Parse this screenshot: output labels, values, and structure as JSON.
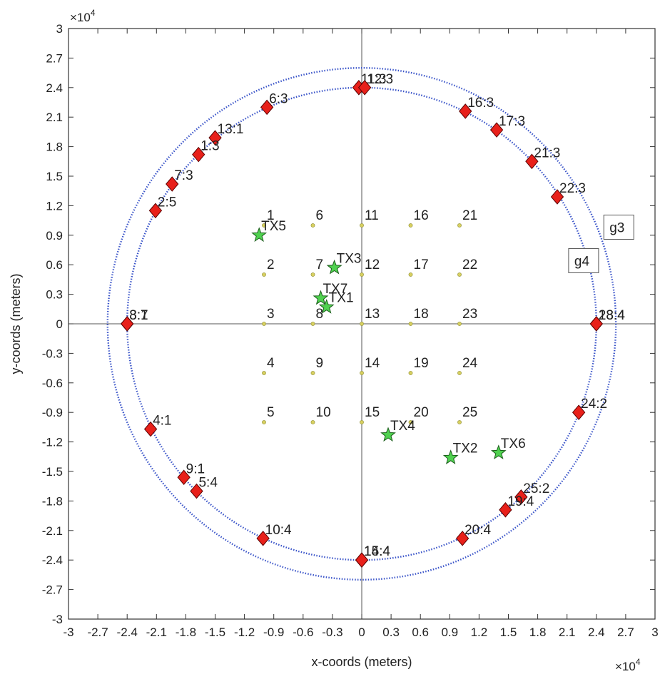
{
  "chart_data": {
    "type": "scatter",
    "xlabel": "x-coords (meters)",
    "ylabel": "y-coords (meters)",
    "x_exponent": "×10",
    "x_exponent_power": "4",
    "y_exponent": "×10",
    "y_exponent_power": "4",
    "xlim": [
      -3,
      3
    ],
    "ylim": [
      -3,
      3
    ],
    "ticks": [
      "-3",
      "-2.7",
      "-2.4",
      "-2.1",
      "-1.8",
      "-1.5",
      "-1.2",
      "-0.9",
      "-0.6",
      "-0.3",
      "0",
      "0.3",
      "0.6",
      "0.9",
      "1.2",
      "1.5",
      "1.8",
      "2.1",
      "2.4",
      "2.7",
      "3"
    ],
    "circles": [
      {
        "r": 2.4
      },
      {
        "r": 2.6
      }
    ],
    "colors": {
      "circle": "#3b55c9",
      "diamond": "#e8201a",
      "star": "#4fd14f",
      "grid_point": "#d8d060",
      "axis": "#333333"
    },
    "grid_points": [
      {
        "label": "1",
        "x": -1.0,
        "y": 1.0
      },
      {
        "label": "6",
        "x": -0.5,
        "y": 1.0
      },
      {
        "label": "11",
        "x": 0,
        "y": 1.0
      },
      {
        "label": "16",
        "x": 0.5,
        "y": 1.0
      },
      {
        "label": "21",
        "x": 1.0,
        "y": 1.0
      },
      {
        "label": "2",
        "x": -1.0,
        "y": 0.5
      },
      {
        "label": "7",
        "x": -0.5,
        "y": 0.5
      },
      {
        "label": "12",
        "x": 0,
        "y": 0.5
      },
      {
        "label": "17",
        "x": 0.5,
        "y": 0.5
      },
      {
        "label": "22",
        "x": 1.0,
        "y": 0.5
      },
      {
        "label": "3",
        "x": -1.0,
        "y": 0
      },
      {
        "label": "8",
        "x": -0.5,
        "y": 0
      },
      {
        "label": "13",
        "x": 0,
        "y": 0
      },
      {
        "label": "18",
        "x": 0.5,
        "y": 0
      },
      {
        "label": "23",
        "x": 1.0,
        "y": 0
      },
      {
        "label": "4",
        "x": -1.0,
        "y": -0.5
      },
      {
        "label": "9",
        "x": -0.5,
        "y": -0.5
      },
      {
        "label": "14",
        "x": 0,
        "y": -0.5
      },
      {
        "label": "19",
        "x": 0.5,
        "y": -0.5
      },
      {
        "label": "24",
        "x": 1.0,
        "y": -0.5
      },
      {
        "label": "5",
        "x": -1.0,
        "y": -1.0
      },
      {
        "label": "10",
        "x": -0.5,
        "y": -1.0
      },
      {
        "label": "15",
        "x": 0,
        "y": -1.0
      },
      {
        "label": "20",
        "x": 0.5,
        "y": -1.0
      },
      {
        "label": "25",
        "x": 1.0,
        "y": -1.0
      }
    ],
    "transmitters": [
      {
        "label": "TX5",
        "x": -1.05,
        "y": 0.9
      },
      {
        "label": "TX3",
        "x": -0.28,
        "y": 0.57
      },
      {
        "label": "TX7",
        "x": -0.42,
        "y": 0.26
      },
      {
        "label": "TX1",
        "x": -0.36,
        "y": 0.17
      },
      {
        "label": "TX4",
        "x": 0.27,
        "y": -1.13
      },
      {
        "label": "TX2",
        "x": 0.91,
        "y": -1.36
      },
      {
        "label": "TX6",
        "x": 1.4,
        "y": -1.31
      }
    ],
    "receivers": [
      {
        "label": "11:3",
        "x": -0.03,
        "y": 2.4
      },
      {
        "label": "12:3",
        "x": 0.03,
        "y": 2.4
      },
      {
        "label": "6:3",
        "x": -0.97,
        "y": 2.2
      },
      {
        "label": "16:3",
        "x": 1.06,
        "y": 2.16
      },
      {
        "label": "13:1",
        "x": -1.5,
        "y": 1.89
      },
      {
        "label": "17:3",
        "x": 1.38,
        "y": 1.97
      },
      {
        "label": "1:3",
        "x": -1.67,
        "y": 1.72
      },
      {
        "label": "21:3",
        "x": 1.74,
        "y": 1.65
      },
      {
        "label": "7:3",
        "x": -1.94,
        "y": 1.42
      },
      {
        "label": "22:3",
        "x": 2.0,
        "y": 1.29
      },
      {
        "label": "2:5",
        "x": -2.11,
        "y": 1.15
      },
      {
        "label": "3:7",
        "x": -2.4,
        "y": 0
      },
      {
        "label": "8:1",
        "x": -2.4,
        "y": 0
      },
      {
        "label": "23:4",
        "x": 2.4,
        "y": 0
      },
      {
        "label": "18:4",
        "x": 2.4,
        "y": 0
      },
      {
        "label": "24:2",
        "x": 2.22,
        "y": -0.9
      },
      {
        "label": "4:1",
        "x": -2.16,
        "y": -1.07
      },
      {
        "label": "9:1",
        "x": -1.82,
        "y": -1.56
      },
      {
        "label": "5:4",
        "x": -1.69,
        "y": -1.7
      },
      {
        "label": "25:2",
        "x": 1.63,
        "y": -1.76
      },
      {
        "label": "19:4",
        "x": 1.47,
        "y": -1.89
      },
      {
        "label": "10:4",
        "x": -1.01,
        "y": -2.18
      },
      {
        "label": "20:4",
        "x": 1.03,
        "y": -2.18
      },
      {
        "label": "15:4",
        "x": 0,
        "y": -2.4
      },
      {
        "label": "14:4",
        "x": 0,
        "y": -2.4
      }
    ],
    "legend_boxes": [
      {
        "label": "g3",
        "x": 2.52,
        "y": 0.96
      },
      {
        "label": "g4",
        "x": 2.16,
        "y": 0.62
      }
    ]
  }
}
